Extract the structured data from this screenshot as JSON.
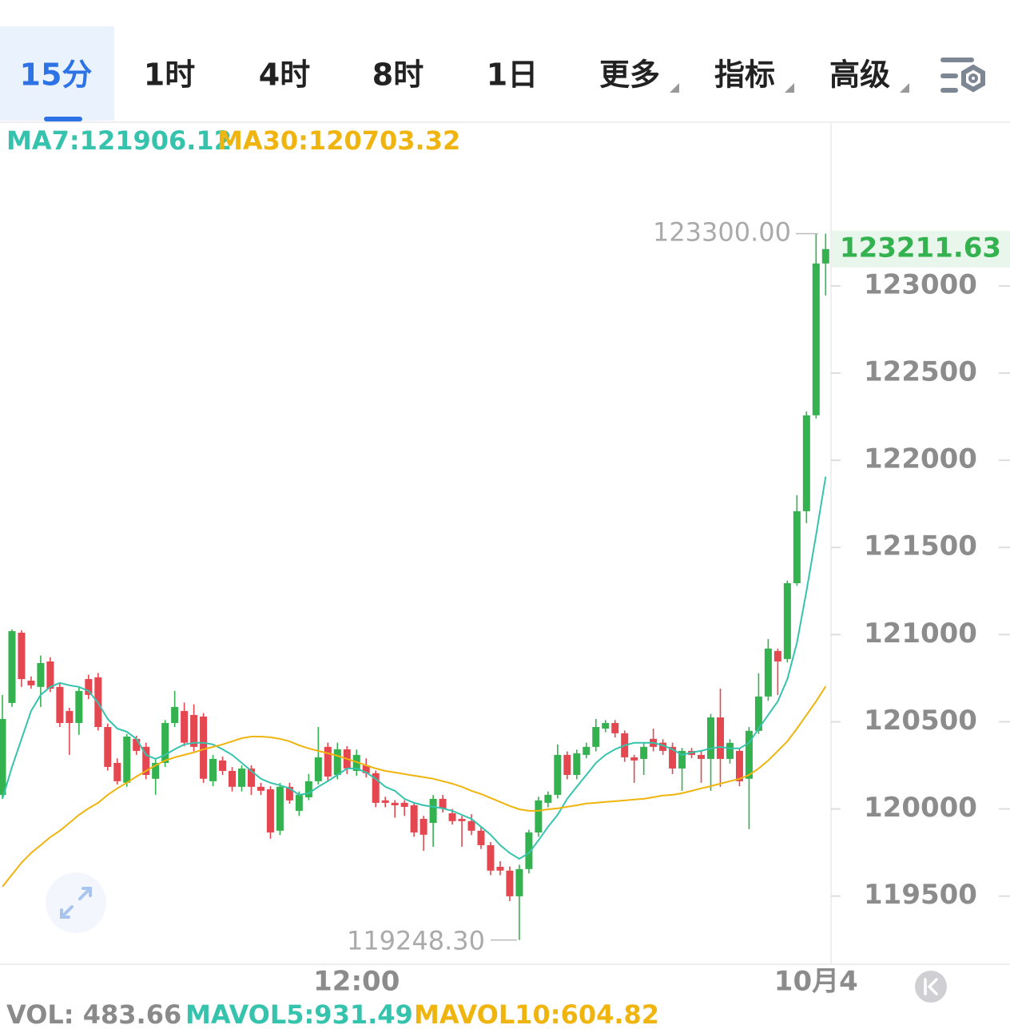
{
  "tabs": {
    "items": [
      "15分",
      "1时",
      "4时",
      "8时",
      "1日",
      "更多",
      "指标",
      "高级"
    ],
    "active": 0
  },
  "chart_data": {
    "type": "candlestick",
    "categories": [
      null,
      null,
      null,
      null,
      null,
      null,
      null,
      null,
      null,
      null,
      null,
      null,
      null,
      null,
      null,
      null,
      null,
      null,
      null,
      null,
      null,
      null,
      null,
      null,
      null,
      null,
      null,
      null,
      null,
      null,
      null,
      null,
      null,
      null,
      null,
      null,
      null,
      "12:00",
      null,
      null,
      null,
      null,
      null,
      null,
      null,
      null,
      null,
      null,
      null,
      null,
      null,
      null,
      null,
      null,
      null,
      null,
      null,
      null,
      null,
      null,
      null,
      null,
      null,
      null,
      null,
      null,
      null,
      null,
      null,
      null,
      null,
      null,
      null,
      null,
      null,
      null,
      null,
      null,
      null,
      null,
      null,
      null,
      null,
      null,
      null,
      "10月4",
      null
    ],
    "open": [
      120081,
      120608,
      121011,
      120736,
      120700,
      120846,
      120700,
      120562,
      120493,
      120745,
      120755,
      120470,
      120264,
      120150,
      120402,
      120356,
      120173,
      120264,
      120493,
      120562,
      120539,
      120530,
      120159,
      120278,
      120218,
      120127,
      120232,
      120127,
      120113,
      119875,
      120127,
      119989,
      120067,
      120159,
      120356,
      120195,
      120342,
      120218,
      120250,
      120205,
      120049,
      120035,
      120035,
      120021,
      119943,
      119920,
      120058,
      119975,
      119943,
      119930,
      119875,
      119792,
      119668,
      119646,
      119499,
      119655,
      119865,
      120035,
      120081,
      120310,
      120195,
      120310,
      120356,
      120461,
      120493,
      120434,
      120296,
      120287,
      120402,
      120380,
      120356,
      120232,
      120333,
      120310,
      120287,
      120525,
      120287,
      120333,
      120173,
      120448,
      120645,
      120906,
      120860,
      121295,
      121708,
      122258,
      123129
    ],
    "high": [
      120654,
      121030,
      121025,
      120760,
      120880,
      120870,
      120720,
      120580,
      120700,
      120770,
      120780,
      120490,
      120290,
      120430,
      120420,
      120380,
      120290,
      120510,
      120677,
      120610,
      120600,
      120550,
      120310,
      120300,
      120240,
      120250,
      120250,
      120150,
      120130,
      120150,
      120150,
      120100,
      120200,
      120470,
      120380,
      120380,
      120360,
      120340,
      120290,
      120220,
      120070,
      120050,
      120050,
      120040,
      119960,
      120080,
      120080,
      120000,
      119960,
      119970,
      119900,
      119810,
      119700,
      119670,
      119680,
      119880,
      120070,
      120100,
      120370,
      120330,
      120340,
      120380,
      120516,
      120510,
      120510,
      120450,
      120310,
      120380,
      120461,
      120400,
      120380,
      120350,
      120350,
      120330,
      120545,
      120690,
      120400,
      120350,
      120470,
      120778,
      120975,
      120920,
      121310,
      121800,
      122280,
      123300,
      123300
    ],
    "low": [
      120058,
      120585,
      120700,
      120690,
      120585,
      120670,
      120470,
      120310,
      120425,
      120630,
      120450,
      120220,
      120140,
      120127,
      120310,
      120170,
      120081,
      120240,
      120470,
      120360,
      120330,
      120150,
      120130,
      120195,
      120100,
      120100,
      120080,
      120080,
      119829,
      119850,
      120030,
      119960,
      120050,
      120140,
      120160,
      120170,
      120200,
      120190,
      120180,
      120010,
      120010,
      119950,
      119960,
      119840,
      119760,
      119783,
      119980,
      119910,
      119783,
      119850,
      119770,
      119620,
      119620,
      119471,
      119248.3,
      119630,
      119840,
      120010,
      120060,
      120170,
      120170,
      120290,
      120330,
      120440,
      120410,
      120270,
      120150,
      120195,
      120330,
      120310,
      120200,
      120104,
      120290,
      120150,
      120104,
      120127,
      120260,
      120130,
      119884,
      120430,
      120620,
      120654,
      120840,
      121280,
      121639,
      122240,
      122945
    ],
    "close": [
      120516,
      121020,
      120745,
      120709,
      120837,
      120690,
      120493,
      120493,
      120677,
      120654,
      120470,
      120241,
      120159,
      120415,
      120333,
      120195,
      120264,
      120493,
      120585,
      120380,
      120356,
      120173,
      120287,
      120218,
      120127,
      120232,
      120127,
      120104,
      119865,
      120127,
      120049,
      120081,
      120159,
      120296,
      120186,
      120342,
      120232,
      120310,
      120205,
      120035,
      120035,
      120021,
      120012,
      119865,
      119852,
      120058,
      120003,
      119930,
      119930,
      119875,
      119792,
      119646,
      119646,
      119499,
      119655,
      119865,
      120049,
      120081,
      120310,
      120195,
      120319,
      120356,
      120470,
      120493,
      120434,
      120296,
      120278,
      120356,
      120356,
      120333,
      120232,
      120333,
      120310,
      120287,
      120525,
      120287,
      120379,
      120159,
      120448,
      120645,
      120920,
      120846,
      121295,
      121708,
      122258,
      123129,
      123211.63
    ],
    "up_color": "#33b24f",
    "down_color": "#e4474f",
    "series": [
      {
        "name": "MA7",
        "color": "#36c3ad",
        "values": [
          120058,
          120241,
          120402,
          120562,
          120654,
          120700,
          120723,
          120709,
          120700,
          120677,
          120608,
          120516,
          120461,
          120443,
          120402,
          120310,
          120287,
          120310,
          120342,
          120370,
          120379,
          120379,
          120370,
          120342,
          120310,
          120264,
          120218,
          120173,
          120150,
          120136,
          120118,
          120081,
          120090,
          120127,
          120159,
          120195,
          120232,
          120232,
          120209,
          120173,
          120127,
          120104,
          120058,
          120035,
          120021,
          120012,
          120003,
          119989,
          119966,
          119943,
          119898,
          119852,
          119792,
          119747,
          119714,
          119747,
          119820,
          119898,
          119966,
          120058,
          120127,
          120195,
          120264,
          120310,
          120342,
          120365,
          120379,
          120379,
          120379,
          120365,
          120342,
          120310,
          120324,
          120333,
          120347,
          120356,
          120347,
          120347,
          120379,
          120461,
          120539,
          120617,
          120745,
          120952,
          121250,
          121571,
          121906.12
        ]
      },
      {
        "name": "MA30",
        "color": "#f0b40e",
        "values": [
          119554,
          119623,
          119692,
          119747,
          119792,
          119838,
          119875,
          119920,
          119966,
          120003,
          120035,
          120081,
          120118,
          120150,
          120186,
          120218,
          120250,
          120278,
          120296,
          120310,
          120324,
          120342,
          120356,
          120370,
          120388,
          120406,
          120415,
          120415,
          120411,
          120402,
          120388,
          120365,
          120347,
          120333,
          120319,
          120305,
          120287,
          120269,
          120250,
          120232,
          120218,
          120209,
          120200,
          120191,
          120182,
          120173,
          120159,
          120145,
          120127,
          120104,
          120086,
          120063,
          120040,
          120017,
          119998,
          119989,
          119989,
          119998,
          120003,
          120012,
          120021,
          120031,
          120035,
          120040,
          120044,
          120049,
          120054,
          120058,
          120067,
          120077,
          120081,
          120090,
          120104,
          120118,
          120131,
          120145,
          120159,
          120173,
          120195,
          120232,
          120278,
          120333,
          120388,
          120461,
          120539,
          120617,
          120703.32
        ]
      }
    ],
    "legend": [
      "MA7:121906.12",
      "MA30:120703.32"
    ],
    "ylim": [
      119118,
      123930
    ],
    "yticks": [
      119500,
      120000,
      120500,
      121000,
      121500,
      122000,
      122500,
      123000
    ],
    "high_label": {
      "value": 123300,
      "label": "123300.00"
    },
    "low_label": {
      "value": 119248.3,
      "label": "119248.30"
    },
    "last_price": {
      "value": 123211.63,
      "label": "123211.63"
    },
    "volume_legend": [
      {
        "label": "VOL: 483.66",
        "color": "#8a8a8a"
      },
      {
        "label": "MAVOL5:931.49",
        "color": "#36c3ad"
      },
      {
        "label": "MAVOL10:604.82",
        "color": "#f0b40e"
      }
    ]
  }
}
